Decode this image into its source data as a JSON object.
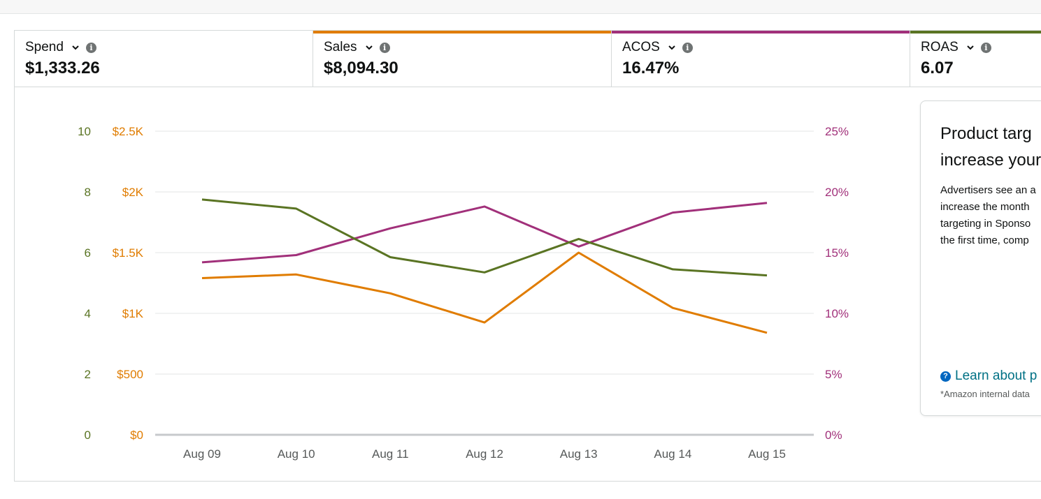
{
  "metrics": [
    {
      "label": "Spend",
      "value": "$1,333.26",
      "color": ""
    },
    {
      "label": "Sales",
      "value": "$8,094.30",
      "color": "#e07c00"
    },
    {
      "label": "ACOS",
      "value": "16.47%",
      "color": "#a1307a"
    },
    {
      "label": "ROAS",
      "value": "6.07",
      "color": "#5a7423"
    }
  ],
  "icons": {
    "dropdown": "chevron-down-icon",
    "info": "info-icon",
    "help": "question-circle-icon"
  },
  "colors": {
    "sales": "#e07c00",
    "acos": "#a1307a",
    "roas": "#5a7423",
    "axis_text": "#565959"
  },
  "card": {
    "title": "Product targ\nincrease your",
    "body": "Advertisers see an a\nincrease the month\ntargeting in Sponso\nthe first time, comp",
    "learn": "Learn about p",
    "footnote": "*Amazon internal data"
  },
  "chart_data": {
    "type": "line",
    "categories": [
      "Aug 09",
      "Aug 10",
      "Aug 11",
      "Aug 12",
      "Aug 13",
      "Aug 14",
      "Aug 15"
    ],
    "series": [
      {
        "name": "Sales",
        "color": "#e07c00",
        "axis": "sales",
        "values": [
          1290,
          1320,
          1165,
          925,
          1500,
          1045,
          840
        ]
      },
      {
        "name": "ACOS",
        "color": "#a1307a",
        "axis": "acos",
        "values": [
          14.2,
          14.8,
          17.0,
          18.8,
          15.5,
          18.3,
          19.1
        ]
      },
      {
        "name": "ROAS",
        "color": "#5a7423",
        "axis": "roas",
        "values": [
          7.75,
          7.45,
          5.85,
          5.35,
          6.45,
          5.45,
          5.25
        ]
      }
    ],
    "axes": {
      "roas": {
        "ticks": [
          0,
          2,
          4,
          6,
          8,
          10
        ],
        "labels": [
          "0",
          "2",
          "4",
          "6",
          "8",
          "10"
        ],
        "color": "#5a7423",
        "range": [
          0,
          10
        ]
      },
      "sales": {
        "ticks": [
          0,
          500,
          1000,
          1500,
          2000,
          2500
        ],
        "labels": [
          "$0",
          "$500",
          "$1K",
          "$1.5K",
          "$2K",
          "$2.5K"
        ],
        "color": "#e07c00",
        "range": [
          0,
          2500
        ]
      },
      "acos": {
        "ticks": [
          0,
          5,
          10,
          15,
          20,
          25
        ],
        "labels": [
          "0%",
          "5%",
          "10%",
          "15%",
          "20%",
          "25%"
        ],
        "color": "#a1307a",
        "range": [
          0,
          25
        ]
      }
    },
    "grid": true
  }
}
